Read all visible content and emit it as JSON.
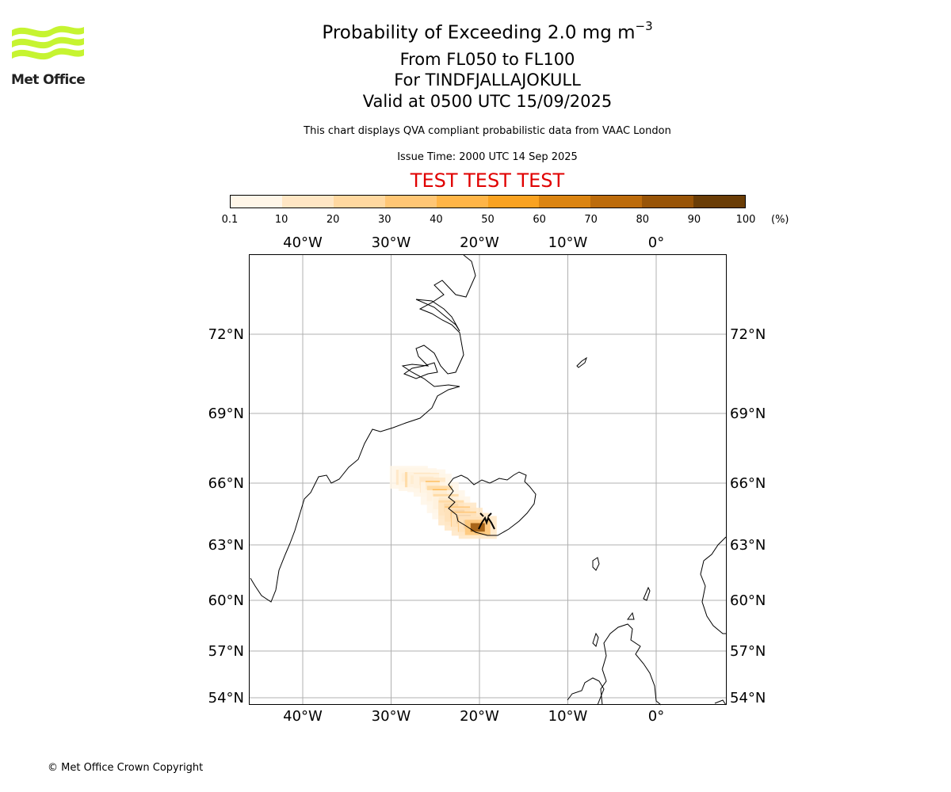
{
  "header": {
    "title": "Probability of Exceeding 2.0 mg m",
    "title_exponent": "−3",
    "levels": "From FL050 to FL100",
    "volcano": "For TINDFJALLAJOKULL",
    "valid": "Valid at 0500 UTC 15/09/2025",
    "description": "This chart displays QVA compliant probabilistic data from VAAC London",
    "issue_time": "Issue Time: 2000 UTC 14 Sep 2025",
    "test_banner": "TEST TEST TEST"
  },
  "logo": {
    "text": "Met Office",
    "color": "#c6f431"
  },
  "colorbar": {
    "ticks": [
      "0.1",
      "10",
      "20",
      "30",
      "40",
      "50",
      "60",
      "70",
      "80",
      "90",
      "100"
    ],
    "unit": "(%)",
    "colors": [
      "#fff6e8",
      "#ffe6c4",
      "#ffd8a0",
      "#ffc675",
      "#ffb547",
      "#f9a221",
      "#db8411",
      "#bc6b0b",
      "#985407",
      "#6a3d06"
    ]
  },
  "map": {
    "lon_labels": [
      "40°W",
      "30°W",
      "20°W",
      "10°W",
      "0°"
    ],
    "lat_labels": [
      "72°N",
      "69°N",
      "66°N",
      "63°N",
      "60°N",
      "57°N",
      "54°N"
    ],
    "plume": [
      {
        "lon": -28.0,
        "lat": 66.25,
        "prob": 35
      },
      {
        "lon": -27.0,
        "lat": 66.15,
        "prob": 45
      },
      {
        "lon": -26.0,
        "lat": 66.1,
        "prob": 50
      },
      {
        "lon": -25.3,
        "lat": 65.9,
        "prob": 40
      },
      {
        "lon": -24.5,
        "lat": 65.5,
        "prob": 45
      },
      {
        "lon": -23.8,
        "lat": 65.1,
        "prob": 55
      },
      {
        "lon": -23.2,
        "lat": 64.8,
        "prob": 65
      },
      {
        "lon": -22.5,
        "lat": 64.5,
        "prob": 75
      },
      {
        "lon": -21.8,
        "lat": 64.25,
        "prob": 80
      },
      {
        "lon": -21.0,
        "lat": 64.0,
        "prob": 85
      },
      {
        "lon": -20.2,
        "lat": 63.85,
        "prob": 80
      }
    ]
  },
  "copyright": "© Met Office Crown Copyright"
}
